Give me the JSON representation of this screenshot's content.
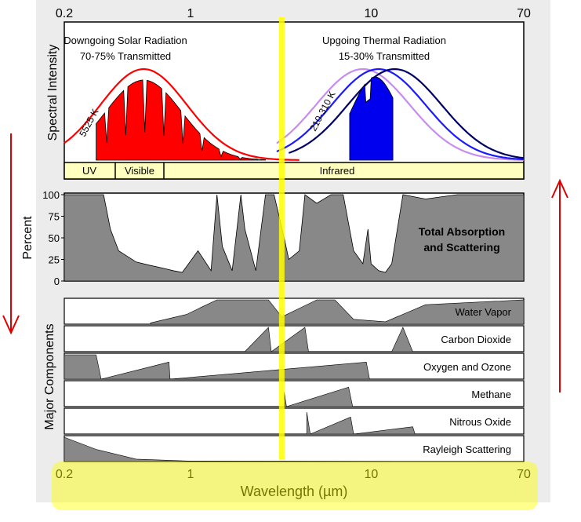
{
  "chart_data": {
    "type": "area",
    "xscale": "log",
    "xlim": [
      0.2,
      70
    ],
    "xticks": [
      "0.2",
      "1",
      "10",
      "70"
    ],
    "xlabel": "Wavelength (µm)",
    "spectral_panel": {
      "ylabel": "Spectral Intensity",
      "solar": {
        "title": "Downgoing Solar Radiation",
        "subtitle": "70-75% Transmitted",
        "curve_label": "5525 K",
        "color": "#ff0000"
      },
      "thermal": {
        "title": "Upgoing Thermal Radiation",
        "subtitle": "15-30% Transmitted",
        "curve_label": "210-310 K",
        "colors": [
          "#c78cf0",
          "#1a1aff",
          "#000066"
        ]
      },
      "bands": [
        "UV",
        "Visible",
        "Infrared"
      ]
    },
    "total_panel": {
      "ylabel": "Percent",
      "yticks": [
        "100",
        "75",
        "50",
        "25",
        "0"
      ],
      "ylim": [
        0,
        100
      ],
      "label_lines": [
        "Total Absorption",
        "and Scattering"
      ],
      "series": {
        "x": [
          0.2,
          0.3,
          0.33,
          0.36,
          0.4,
          0.5,
          0.6,
          0.7,
          0.8,
          0.9,
          1.1,
          1.3,
          1.4,
          1.5,
          1.7,
          1.9,
          2.0,
          2.3,
          2.6,
          2.9,
          3.3,
          3.5,
          4.0,
          4.3,
          5.0,
          6.0,
          7.0,
          8.0,
          9.0,
          9.6,
          10.0,
          11.0,
          12.0,
          13.0,
          15.0,
          20.0,
          30.0,
          70.0
        ],
        "values": [
          100,
          100,
          100,
          60,
          35,
          22,
          18,
          15,
          12,
          10,
          35,
          12,
          100,
          40,
          12,
          100,
          60,
          12,
          100,
          100,
          50,
          25,
          35,
          100,
          90,
          100,
          100,
          35,
          20,
          60,
          20,
          12,
          10,
          20,
          100,
          95,
          100,
          100
        ]
      }
    },
    "components": {
      "ylabel": "Major Components",
      "labels": [
        "Water Vapor",
        "Carbon Dioxide",
        "Oxygen and Ozone",
        "Methane",
        "Nitrous Oxide",
        "Rayleigh Scattering"
      ]
    },
    "annotation": {
      "highlight_wavelength_um": 3.2,
      "highlight_color": "#ffff00",
      "arrow_color": "#dd0000"
    },
    "colors": {
      "fill": "#888888",
      "band_bg": "#ffffc0",
      "frame": "#e8e8e8"
    }
  }
}
